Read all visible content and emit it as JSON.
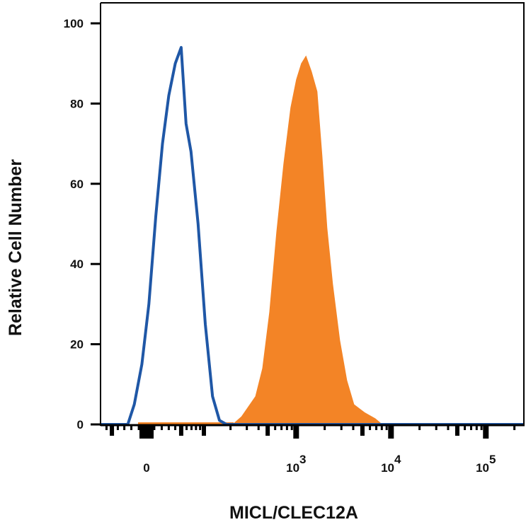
{
  "chart_data": {
    "type": "area",
    "xlabel": "MICL/CLEC12A",
    "ylabel": "Relative Cell Number",
    "xscale": "biexponential",
    "ylim": [
      0,
      100
    ],
    "yticks": [
      "0",
      "20",
      "40",
      "60",
      "80",
      "100"
    ],
    "xticks": [
      {
        "value": 0,
        "base": "0",
        "exp": ""
      },
      {
        "value": 1000,
        "base": "10",
        "exp": "3"
      },
      {
        "value": 10000,
        "base": "10",
        "exp": "4"
      },
      {
        "value": 100000,
        "base": "10",
        "exp": "5"
      }
    ],
    "grid": false,
    "series": [
      {
        "style": "outline",
        "color": "#1f57a6",
        "x": [
          -25,
          -16,
          -6,
          3,
          12,
          21,
          30,
          40,
          50,
          59,
          69,
          85,
          104,
          126,
          151,
          181
        ],
        "y": [
          0,
          5,
          15,
          30,
          52,
          70,
          82,
          90,
          94,
          75,
          68,
          50,
          25,
          7,
          1,
          0
        ]
      },
      {
        "style": "filled",
        "color": "#f38426",
        "x": [
          209,
          262,
          369,
          438,
          520,
          618,
          734,
          871,
          1000,
          1128,
          1272,
          1459,
          1675,
          1888,
          2130,
          2443,
          2902,
          3446,
          4092,
          5297,
          6855,
          8135
        ],
        "y": [
          0,
          2,
          7,
          14,
          28,
          48,
          65,
          79,
          86,
          90,
          92,
          88,
          83,
          67,
          49,
          35,
          21,
          11,
          5,
          3,
          1.5,
          0
        ]
      }
    ]
  }
}
